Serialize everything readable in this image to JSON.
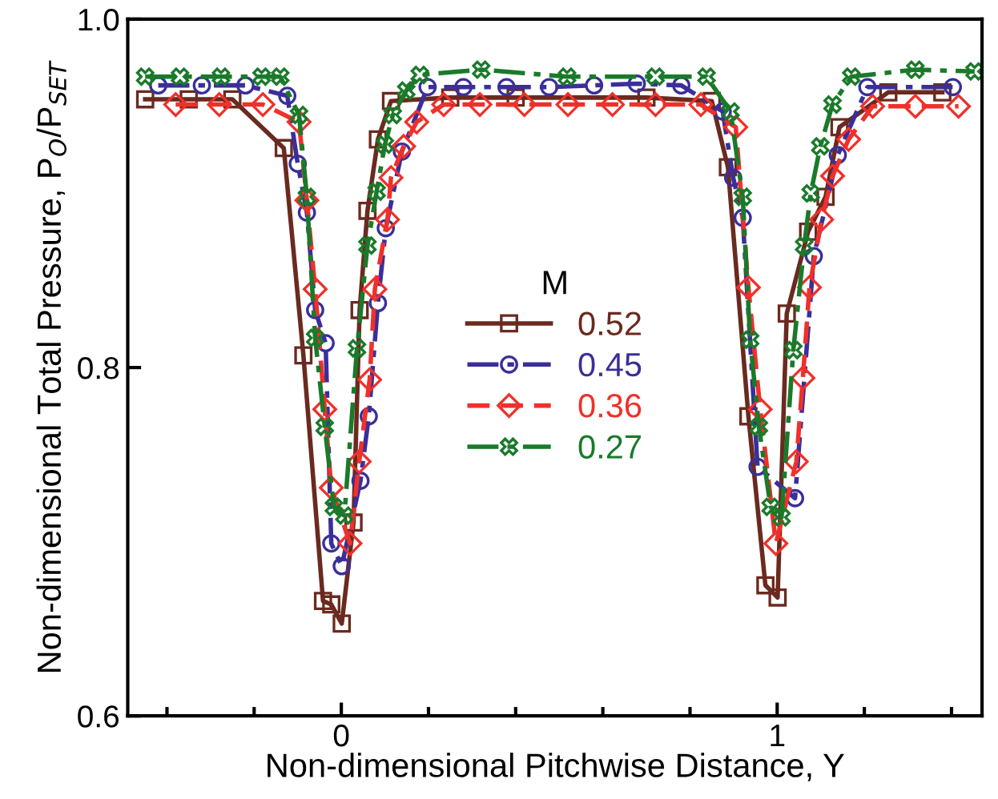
{
  "chart_data": {
    "type": "line",
    "xlabel": "Non-dimensional Pitchwise Distance, Y",
    "ylabel": "Non-dimensional Total Pressure, P$_{O}$/P$_{SET}$",
    "legend_title": "M",
    "legend": "center",
    "xlim": [
      -0.49,
      1.47
    ],
    "xticks": [
      {
        "value": -0.4,
        "label": null
      },
      {
        "value": -0.2,
        "label": null
      },
      0,
      {
        "value": 0.2,
        "label": null
      },
      {
        "value": 0.4,
        "label": null
      },
      {
        "value": 0.6,
        "label": null
      },
      {
        "value": 0.8,
        "label": null
      },
      1,
      {
        "value": 1.2,
        "label": null
      },
      {
        "value": 1.4,
        "label": null
      }
    ],
    "ylim": [
      0.6,
      1.0
    ],
    "yticks": [
      {
        "value": 0.6,
        "label": "0.6"
      },
      {
        "value": 0.8,
        "label": "0.8"
      },
      {
        "value": 1.0,
        "label": "1.0"
      }
    ],
    "grid": false,
    "series": [
      {
        "name": "0.52",
        "color": "#6b2a1f",
        "marker": "square",
        "line_style": "solid",
        "x": [
          -0.45,
          -0.35,
          -0.25,
          -0.132,
          -0.087,
          -0.042,
          -0.023,
          0.001,
          0.028,
          0.042,
          0.06,
          0.084,
          0.114,
          0.25,
          0.4,
          0.7,
          0.85,
          0.887,
          0.934,
          0.973,
          1.001,
          1.022,
          1.071,
          1.111,
          1.143,
          1.255,
          1.379
        ],
        "values": [
          0.954,
          0.954,
          0.954,
          0.926,
          0.807,
          0.666,
          0.664,
          0.653,
          0.711,
          0.833,
          0.89,
          0.931,
          0.953,
          0.955,
          0.955,
          0.955,
          0.953,
          0.915,
          0.772,
          0.675,
          0.668,
          0.831,
          0.878,
          0.898,
          0.938,
          0.958,
          0.958
        ]
      },
      {
        "name": "0.45",
        "color": "#3a2f9a",
        "marker": "circle",
        "line_style": "dashdot",
        "x": [
          -0.42,
          -0.32,
          -0.22,
          -0.124,
          -0.1,
          -0.079,
          -0.06,
          -0.036,
          -0.023,
          0.001,
          0.044,
          0.063,
          0.084,
          0.102,
          0.139,
          0.198,
          0.28,
          0.379,
          0.477,
          0.58,
          0.678,
          0.78,
          0.875,
          0.899,
          0.921,
          0.955,
          1.041,
          1.084,
          1.139,
          1.207,
          1.403
        ],
        "values": [
          0.962,
          0.962,
          0.962,
          0.956,
          0.917,
          0.889,
          0.833,
          0.814,
          0.699,
          0.686,
          0.735,
          0.772,
          0.837,
          0.88,
          0.924,
          0.961,
          0.961,
          0.961,
          0.961,
          0.962,
          0.963,
          0.962,
          0.947,
          0.909,
          0.886,
          0.743,
          0.725,
          0.864,
          0.922,
          0.961,
          0.961
        ]
      },
      {
        "name": "0.36",
        "color": "#f0302a",
        "marker": "diamond",
        "line_style": "dashed",
        "x": [
          -0.38,
          -0.28,
          -0.18,
          -0.097,
          -0.079,
          -0.06,
          -0.038,
          -0.023,
          0.02,
          0.041,
          0.065,
          0.077,
          0.106,
          0.114,
          0.143,
          0.173,
          0.235,
          0.318,
          0.42,
          0.52,
          0.622,
          0.721,
          0.825,
          0.905,
          0.934,
          0.961,
          0.997,
          1.044,
          1.059,
          1.074,
          1.102,
          1.127,
          1.164,
          1.219,
          1.317,
          1.416
        ],
        "values": [
          0.951,
          0.951,
          0.951,
          0.941,
          0.896,
          0.845,
          0.776,
          0.731,
          0.699,
          0.746,
          0.793,
          0.845,
          0.885,
          0.909,
          0.927,
          0.941,
          0.951,
          0.951,
          0.951,
          0.951,
          0.951,
          0.951,
          0.951,
          0.938,
          0.846,
          0.776,
          0.699,
          0.746,
          0.794,
          0.846,
          0.885,
          0.91,
          0.931,
          0.95,
          0.95,
          0.95
        ]
      },
      {
        "name": "0.27",
        "color": "#1a7a2a",
        "marker": "cross",
        "line_style": "dashdot",
        "x": [
          -0.45,
          -0.37,
          -0.276,
          -0.183,
          -0.14,
          -0.097,
          -0.079,
          -0.06,
          -0.038,
          -0.017,
          0.007,
          0.036,
          0.06,
          0.081,
          0.1,
          0.118,
          0.149,
          0.18,
          0.321,
          0.518,
          0.721,
          0.838,
          0.893,
          0.921,
          0.938,
          0.958,
          0.985,
          1.01,
          1.037,
          1.062,
          1.077,
          1.099,
          1.127,
          1.17,
          1.317,
          1.453
        ],
        "values": [
          0.967,
          0.967,
          0.967,
          0.967,
          0.967,
          0.945,
          0.898,
          0.817,
          0.766,
          0.72,
          0.715,
          0.811,
          0.87,
          0.901,
          0.928,
          0.945,
          0.959,
          0.968,
          0.971,
          0.967,
          0.967,
          0.967,
          0.947,
          0.898,
          0.816,
          0.766,
          0.72,
          0.714,
          0.81,
          0.87,
          0.9,
          0.927,
          0.951,
          0.967,
          0.971,
          0.97
        ]
      }
    ]
  }
}
